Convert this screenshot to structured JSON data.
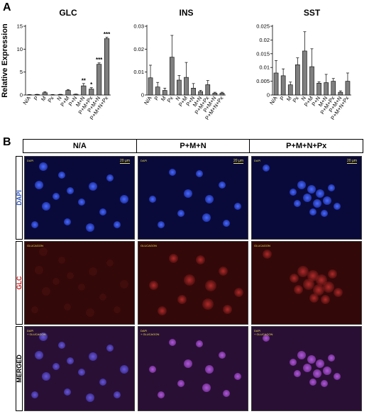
{
  "panel_a": {
    "letter": "A"
  },
  "panel_b": {
    "letter": "B",
    "columns": [
      "N/A",
      "P+M+N",
      "P+M+N+Px"
    ],
    "rows": [
      {
        "label": "DAPI",
        "color": "#2f58c8"
      },
      {
        "label": "GLC",
        "color": "#d42020"
      },
      {
        "label": "MERGED",
        "color": "#000000"
      }
    ],
    "scale_bar": "20 µm",
    "overlay_labels": {
      "dapi": "DAPI",
      "glucagon": "GLUCAGON",
      "merged": [
        "DAPI",
        "+ GLUCAGON"
      ]
    }
  },
  "chart_data": [
    {
      "type": "bar",
      "title": "GLC",
      "ylabel": "Relative Expression",
      "ylim": [
        0,
        15
      ],
      "yticks": [
        "0",
        "5",
        "10",
        "15"
      ],
      "categories": [
        "N/A",
        "P",
        "M",
        "Px",
        "N",
        "P+M",
        "P+N",
        "M+N",
        "P+M+Px",
        "P+M+N",
        "P+M+N+Px"
      ],
      "values": [
        0.05,
        0.1,
        0.5,
        0.05,
        0.1,
        1.0,
        0.15,
        2.0,
        1.3,
        6.7,
        12.3
      ],
      "errors": [
        0.05,
        0.05,
        0.2,
        0.05,
        0.05,
        0.2,
        0.05,
        0.5,
        0.3,
        0.3,
        0.3
      ],
      "annotations": [
        "",
        "",
        "",
        "",
        "",
        "",
        "",
        "**",
        "*",
        "***",
        "***"
      ]
    },
    {
      "type": "bar",
      "title": "INS",
      "ylim": [
        0,
        0.03
      ],
      "yticks": [
        "0",
        "0.01",
        "0.02",
        "0.03"
      ],
      "categories": [
        "N/A",
        "P",
        "M",
        "Px",
        "N",
        "P+M",
        "P+N",
        "M+N",
        "P+M+Px",
        "P+M+N",
        "P+M+N+Px"
      ],
      "values": [
        0.0075,
        0.0035,
        0.002,
        0.0165,
        0.0065,
        0.0077,
        0.003,
        0.0015,
        0.0045,
        0.0008,
        0.0008
      ],
      "errors": [
        0.0055,
        0.002,
        0.001,
        0.0095,
        0.002,
        0.0065,
        0.002,
        0.0005,
        0.0018,
        0.0004,
        0.0004
      ],
      "annotations": [
        "",
        "",
        "",
        "",
        "",
        "",
        "",
        "",
        "",
        "",
        ""
      ]
    },
    {
      "type": "bar",
      "title": "SST",
      "ylim": [
        0,
        0.025
      ],
      "yticks": [
        "0",
        "0.005",
        "0.01",
        "0.015",
        "0.02",
        "0.025"
      ],
      "categories": [
        "N/A",
        "P",
        "M",
        "Px",
        "N",
        "P+M",
        "P+N",
        "M+N",
        "P+M+Px",
        "P+M+N",
        "P+M+N+Px"
      ],
      "values": [
        0.008,
        0.007,
        0.0037,
        0.011,
        0.016,
        0.0103,
        0.0043,
        0.0045,
        0.005,
        0.001,
        0.005
      ],
      "errors": [
        0.0045,
        0.0025,
        0.001,
        0.0025,
        0.007,
        0.0065,
        0.0005,
        0.003,
        0.001,
        0.0005,
        0.003
      ],
      "annotations": [
        "",
        "",
        "",
        "",
        "",
        "",
        "",
        "",
        "",
        "",
        ""
      ]
    }
  ]
}
